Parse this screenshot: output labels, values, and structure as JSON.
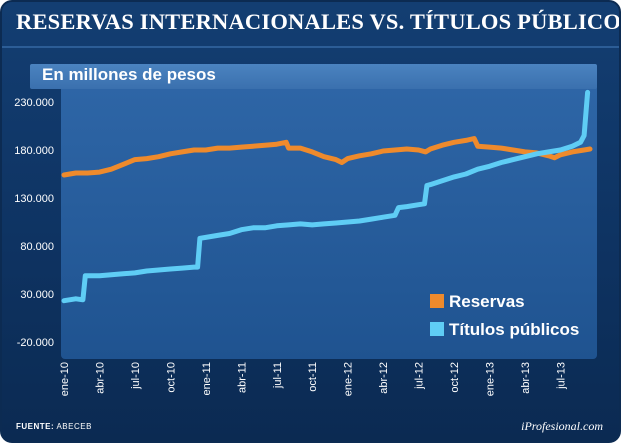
{
  "chart_data": {
    "type": "line",
    "title": "RESERVAS INTERNACIONALES VS. TÍTULOS PÚBLICOS",
    "subtitle": "En millones de pesos",
    "xlabel": "",
    "ylabel": "",
    "ylim": [
      -20000,
      250000
    ],
    "yticks": [
      -20000,
      30000,
      80000,
      130000,
      180000,
      230000
    ],
    "ytick_labels": [
      "-20.000",
      "30.000",
      "80.000",
      "130.000",
      "180.000",
      "230.000"
    ],
    "categories": [
      "ene-10",
      "abr-10",
      "jul-10",
      "oct-10",
      "ene-11",
      "abr-11",
      "jul-11",
      "oct-11",
      "ene-12",
      "abr-12",
      "jul-12",
      "oct-12",
      "ene-13",
      "abr-13",
      "jul-13"
    ],
    "x_range_months": [
      0,
      44.5
    ],
    "series": [
      {
        "name": "Reservas",
        "color": "#ee8a2c",
        "points": [
          [
            0,
            154000
          ],
          [
            1,
            156000
          ],
          [
            2,
            156000
          ],
          [
            3,
            157000
          ],
          [
            4,
            160000
          ],
          [
            5,
            165000
          ],
          [
            6,
            170000
          ],
          [
            7,
            171000
          ],
          [
            8,
            173000
          ],
          [
            9,
            176000
          ],
          [
            10,
            178000
          ],
          [
            11,
            180000
          ],
          [
            12,
            180000
          ],
          [
            13,
            182000
          ],
          [
            14,
            182000
          ],
          [
            15,
            183000
          ],
          [
            16,
            184000
          ],
          [
            17,
            185000
          ],
          [
            18,
            186000
          ],
          [
            18.8,
            188000
          ],
          [
            19,
            182000
          ],
          [
            20,
            182000
          ],
          [
            21,
            178000
          ],
          [
            22,
            173000
          ],
          [
            23,
            170000
          ],
          [
            23.5,
            167000
          ],
          [
            24,
            171000
          ],
          [
            25,
            174000
          ],
          [
            26,
            176000
          ],
          [
            27,
            179000
          ],
          [
            28,
            180000
          ],
          [
            29,
            181000
          ],
          [
            30,
            180000
          ],
          [
            30.6,
            178000
          ],
          [
            31,
            181000
          ],
          [
            32,
            185000
          ],
          [
            33,
            188000
          ],
          [
            34,
            190000
          ],
          [
            34.7,
            192000
          ],
          [
            35,
            184000
          ],
          [
            36,
            183000
          ],
          [
            37,
            182000
          ],
          [
            38,
            180000
          ],
          [
            39,
            178000
          ],
          [
            40,
            177000
          ],
          [
            41,
            174000
          ],
          [
            41.5,
            172000
          ],
          [
            42,
            175000
          ],
          [
            43,
            178000
          ],
          [
            44,
            180000
          ],
          [
            44.5,
            181000
          ]
        ]
      },
      {
        "name": "Títulos públicos",
        "color": "#5fcdf5",
        "points": [
          [
            0,
            23000
          ],
          [
            1,
            25000
          ],
          [
            1.6,
            24000
          ],
          [
            1.8,
            49000
          ],
          [
            3,
            49000
          ],
          [
            4,
            50000
          ],
          [
            5,
            51000
          ],
          [
            6,
            52000
          ],
          [
            7,
            54000
          ],
          [
            8,
            55000
          ],
          [
            9,
            56000
          ],
          [
            10,
            57000
          ],
          [
            11,
            58000
          ],
          [
            11.3,
            58000
          ],
          [
            11.5,
            88000
          ],
          [
            12,
            89000
          ],
          [
            13,
            91000
          ],
          [
            14,
            93000
          ],
          [
            15,
            97000
          ],
          [
            16,
            99000
          ],
          [
            17,
            99000
          ],
          [
            18,
            101000
          ],
          [
            19,
            102000
          ],
          [
            20,
            103000
          ],
          [
            21,
            102000
          ],
          [
            22,
            103000
          ],
          [
            23,
            104000
          ],
          [
            24,
            105000
          ],
          [
            25,
            106000
          ],
          [
            26,
            108000
          ],
          [
            27,
            110000
          ],
          [
            28,
            112000
          ],
          [
            28.3,
            120000
          ],
          [
            29,
            121000
          ],
          [
            30,
            123000
          ],
          [
            30.5,
            124000
          ],
          [
            30.7,
            143000
          ],
          [
            31,
            144000
          ],
          [
            32,
            148000
          ],
          [
            33,
            152000
          ],
          [
            34,
            155000
          ],
          [
            35,
            160000
          ],
          [
            36,
            163000
          ],
          [
            37,
            167000
          ],
          [
            38,
            170000
          ],
          [
            39,
            173000
          ],
          [
            40,
            176000
          ],
          [
            41,
            178000
          ],
          [
            42,
            180000
          ],
          [
            43,
            184000
          ],
          [
            43.7,
            188000
          ],
          [
            44,
            195000
          ],
          [
            44.3,
            240000
          ]
        ]
      }
    ]
  },
  "source": {
    "label": "FUENTE:",
    "value": "ABECEB"
  },
  "brand": "iProfesional.com"
}
